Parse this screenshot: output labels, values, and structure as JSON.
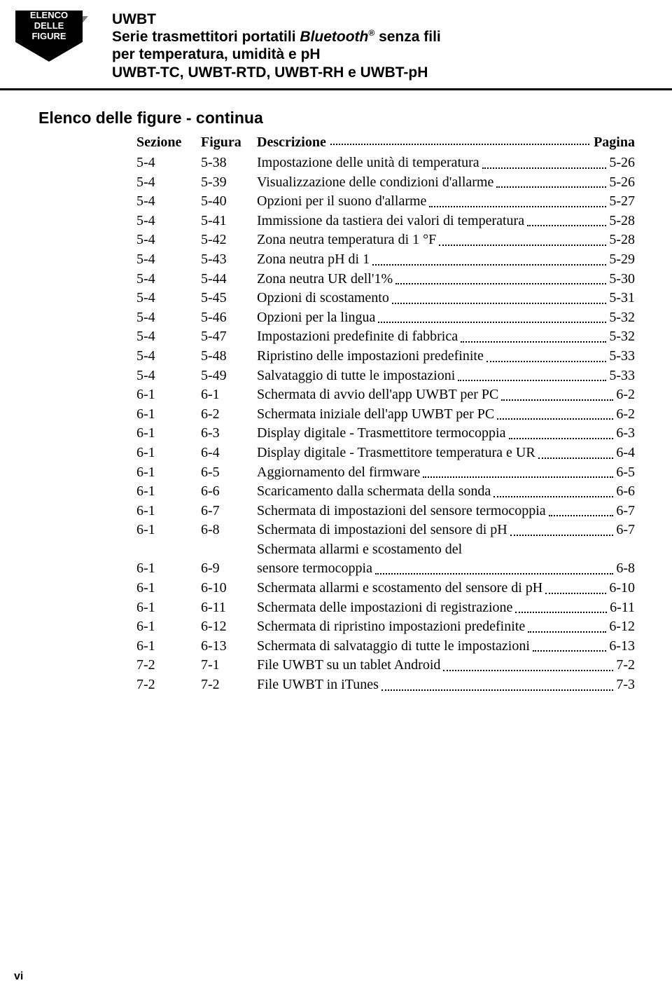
{
  "badge": {
    "line1": "ELENCO DELLE",
    "line2": "FIGURE"
  },
  "header": {
    "title": "UWBT",
    "subtitle_pre": "Serie trasmettitori portatili ",
    "subtitle_bt": "Bluetooth",
    "subtitle_reg": "®",
    "subtitle_post": " senza fili",
    "line3": "per temperatura, umidità e pH",
    "line4": "UWBT-TC, UWBT-RTD, UWBT-RH e UWBT-pH"
  },
  "listTitle": "Elenco delle figure - continua",
  "columns": {
    "sezione": "Sezione",
    "figura": "Figura",
    "descrizione": "Descrizione",
    "pagina": "Pagina"
  },
  "rows": [
    {
      "sezione": "5-4",
      "figura": "5-38",
      "descrizione": "Impostazione delle unità di temperatura",
      "pagina": "5-26"
    },
    {
      "sezione": "5-4",
      "figura": "5-39",
      "descrizione": "Visualizzazione delle condizioni d'allarme",
      "pagina": "5-26"
    },
    {
      "sezione": "5-4",
      "figura": "5-40",
      "descrizione": "Opzioni per il suono d'allarme",
      "pagina": "5-27"
    },
    {
      "sezione": "5-4",
      "figura": "5-41",
      "descrizione": "Immissione da tastiera dei valori di temperatura",
      "pagina": "5-28"
    },
    {
      "sezione": "5-4",
      "figura": "5-42",
      "descrizione": "Zona neutra temperatura di 1 °F",
      "pagina": "5-28"
    },
    {
      "sezione": "5-4",
      "figura": "5-43",
      "descrizione": "Zona neutra pH di 1",
      "pagina": "5-29"
    },
    {
      "sezione": "5-4",
      "figura": "5-44",
      "descrizione": "Zona neutra UR dell'1%",
      "pagina": "5-30"
    },
    {
      "sezione": "5-4",
      "figura": "5-45",
      "descrizione": "Opzioni di scostamento",
      "pagina": "5-31"
    },
    {
      "sezione": "5-4",
      "figura": "5-46",
      "descrizione": "Opzioni per la lingua",
      "pagina": "5-32"
    },
    {
      "sezione": "5-4",
      "figura": "5-47",
      "descrizione": "Impostazioni predefinite di fabbrica",
      "pagina": "5-32"
    },
    {
      "sezione": "5-4",
      "figura": "5-48",
      "descrizione": "Ripristino delle impostazioni predefinite",
      "pagina": "5-33"
    },
    {
      "sezione": "5-4",
      "figura": "5-49",
      "descrizione": "Salvataggio di tutte le impostazioni",
      "pagina": "5-33"
    },
    {
      "sezione": "6-1",
      "figura": "6-1",
      "descrizione": "Schermata di avvio dell'app UWBT per PC",
      "pagina": "6-2"
    },
    {
      "sezione": "6-1",
      "figura": "6-2",
      "descrizione": "Schermata iniziale dell'app UWBT per PC",
      "pagina": "6-2"
    },
    {
      "sezione": "6-1",
      "figura": "6-3",
      "descrizione": "Display digitale - Trasmettitore termocoppia",
      "pagina": "6-3"
    },
    {
      "sezione": "6-1",
      "figura": "6-4",
      "descrizione": "Display digitale - Trasmettitore temperatura e UR",
      "pagina": "6-4"
    },
    {
      "sezione": "6-1",
      "figura": "6-5",
      "descrizione": "Aggiornamento del firmware",
      "pagina": "6-5"
    },
    {
      "sezione": "6-1",
      "figura": "6-6",
      "descrizione": "Scaricamento dalla schermata della sonda",
      "pagina": "6-6"
    },
    {
      "sezione": "6-1",
      "figura": "6-7",
      "descrizione": "Schermata di impostazioni del sensore termocoppia",
      "pagina": "6-7"
    },
    {
      "sezione": "6-1",
      "figura": "6-8",
      "descrizione": "Schermata di impostazioni del sensore di pH",
      "pagina": "6-7"
    },
    {
      "sezione": "6-1",
      "figura": "6-9",
      "descrizione": "Schermata allarmi e scostamento del",
      "descrizione2": "sensore termocoppia",
      "pagina": "6-8"
    },
    {
      "sezione": "6-1",
      "figura": "6-10",
      "descrizione": "Schermata allarmi e scostamento del sensore di pH",
      "pagina": "6-10"
    },
    {
      "sezione": "6-1",
      "figura": "6-11",
      "descrizione": "Schermata delle impostazioni di registrazione",
      "pagina": "6-11"
    },
    {
      "sezione": "6-1",
      "figura": "6-12",
      "descrizione": "Schermata di ripristino impostazioni predefinite",
      "pagina": "6-12"
    },
    {
      "sezione": "6-1",
      "figura": "6-13",
      "descrizione": "Schermata di salvataggio di tutte le impostazioni",
      "pagina": "6-13"
    },
    {
      "sezione": "7-2",
      "figura": "7-1",
      "descrizione": "File UWBT su un tablet Android",
      "pagina": "7-2"
    },
    {
      "sezione": "7-2",
      "figura": "7-2",
      "descrizione": "File UWBT in iTunes",
      "pagina": "7-3"
    }
  ],
  "pageNumber": "vi"
}
